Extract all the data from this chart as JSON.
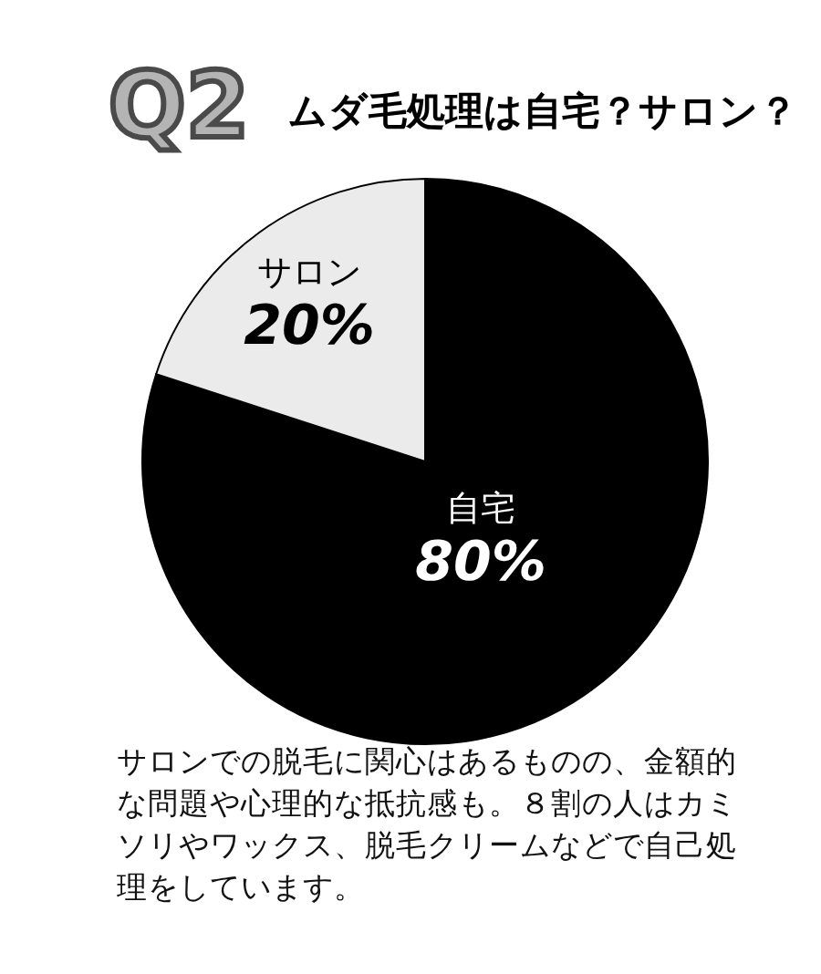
{
  "chart_data": {
    "type": "pie",
    "title": "ムダ毛処理は自宅？サロン？",
    "categories": [
      "自宅",
      "サロン"
    ],
    "values": [
      80,
      20
    ],
    "colors": [
      "#000000",
      "#ebebeb"
    ],
    "value_labels": [
      "80%",
      "20%"
    ],
    "annotations": [
      "Q2",
      "サロンでの脱毛に関心はあるものの、金額的な問題や心理的な抵抗感も。８割の人はカミソリやワックス、脱毛クリームなどで自己処理をしています。"
    ]
  }
}
